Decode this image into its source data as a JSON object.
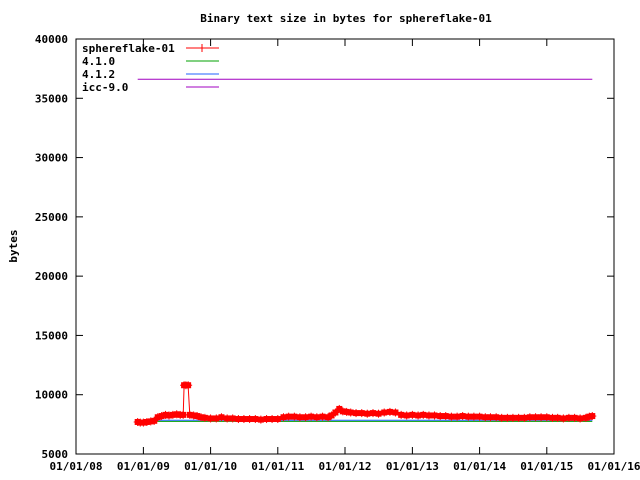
{
  "chart_data": {
    "type": "line",
    "title": "Binary text size in bytes for sphereflake-01",
    "xlabel": "",
    "ylabel": "bytes",
    "x_type": "date",
    "xlim": [
      "2008-01-01",
      "2016-01-01"
    ],
    "ylim": [
      5000,
      40000
    ],
    "yticks": [
      5000,
      10000,
      15000,
      20000,
      25000,
      30000,
      35000,
      40000
    ],
    "xticks": [
      "2008-01-01",
      "2009-01-01",
      "2010-01-01",
      "2011-01-01",
      "2012-01-01",
      "2013-01-01",
      "2014-01-01",
      "2015-01-01",
      "2016-01-01"
    ],
    "xtick_labels": [
      "01/01/08",
      "01/01/09",
      "01/01/10",
      "01/01/11",
      "01/01/12",
      "01/01/13",
      "01/01/14",
      "01/01/15",
      "01/01/16"
    ],
    "grid": false,
    "legend_position": "top-left",
    "series": [
      {
        "name": "sphereflake-01",
        "color": "#ff0000",
        "style": "linespoints",
        "points": [
          [
            "2008-12-01",
            7700
          ],
          [
            "2008-12-15",
            7650
          ],
          [
            "2009-01-01",
            7650
          ],
          [
            "2009-01-20",
            7700
          ],
          [
            "2009-02-10",
            7750
          ],
          [
            "2009-03-01",
            7800
          ],
          [
            "2009-03-20",
            8100
          ],
          [
            "2009-04-10",
            8200
          ],
          [
            "2009-05-01",
            8300
          ],
          [
            "2009-05-20",
            8250
          ],
          [
            "2009-06-10",
            8300
          ],
          [
            "2009-07-01",
            8350
          ],
          [
            "2009-07-20",
            8300
          ],
          [
            "2009-08-05",
            8300
          ],
          [
            "2009-08-10",
            10800
          ],
          [
            "2009-08-20",
            10800
          ],
          [
            "2009-09-01",
            10800
          ],
          [
            "2009-09-10",
            8300
          ],
          [
            "2009-10-01",
            8250
          ],
          [
            "2009-10-20",
            8200
          ],
          [
            "2009-11-10",
            8100
          ],
          [
            "2009-12-01",
            8050
          ],
          [
            "2010-01-01",
            8000
          ],
          [
            "2010-02-01",
            8000
          ],
          [
            "2010-03-01",
            8100
          ],
          [
            "2010-04-01",
            8000
          ],
          [
            "2010-05-01",
            8000
          ],
          [
            "2010-06-01",
            7950
          ],
          [
            "2010-07-01",
            7950
          ],
          [
            "2010-08-01",
            7950
          ],
          [
            "2010-09-01",
            7950
          ],
          [
            "2010-10-01",
            7900
          ],
          [
            "2010-11-01",
            7950
          ],
          [
            "2010-12-01",
            7950
          ],
          [
            "2011-01-01",
            7950
          ],
          [
            "2011-02-01",
            8100
          ],
          [
            "2011-03-01",
            8150
          ],
          [
            "2011-04-01",
            8150
          ],
          [
            "2011-05-01",
            8100
          ],
          [
            "2011-06-01",
            8100
          ],
          [
            "2011-07-01",
            8150
          ],
          [
            "2011-08-01",
            8100
          ],
          [
            "2011-09-01",
            8150
          ],
          [
            "2011-10-01",
            8100
          ],
          [
            "2011-10-20",
            8250
          ],
          [
            "2011-11-10",
            8500
          ],
          [
            "2011-12-01",
            8800
          ],
          [
            "2011-12-20",
            8600
          ],
          [
            "2012-01-10",
            8550
          ],
          [
            "2012-02-01",
            8500
          ],
          [
            "2012-03-01",
            8450
          ],
          [
            "2012-04-01",
            8450
          ],
          [
            "2012-05-01",
            8400
          ],
          [
            "2012-06-01",
            8450
          ],
          [
            "2012-07-01",
            8400
          ],
          [
            "2012-08-01",
            8500
          ],
          [
            "2012-09-01",
            8550
          ],
          [
            "2012-10-01",
            8500
          ],
          [
            "2012-11-01",
            8300
          ],
          [
            "2012-12-01",
            8250
          ],
          [
            "2013-01-01",
            8300
          ],
          [
            "2013-02-01",
            8250
          ],
          [
            "2013-03-01",
            8300
          ],
          [
            "2013-04-01",
            8250
          ],
          [
            "2013-05-01",
            8250
          ],
          [
            "2013-06-01",
            8200
          ],
          [
            "2013-07-01",
            8200
          ],
          [
            "2013-08-01",
            8150
          ],
          [
            "2013-09-01",
            8150
          ],
          [
            "2013-10-01",
            8200
          ],
          [
            "2013-11-01",
            8150
          ],
          [
            "2013-12-01",
            8150
          ],
          [
            "2014-01-01",
            8150
          ],
          [
            "2014-02-01",
            8100
          ],
          [
            "2014-03-01",
            8100
          ],
          [
            "2014-04-01",
            8100
          ],
          [
            "2014-05-01",
            8050
          ],
          [
            "2014-06-01",
            8050
          ],
          [
            "2014-07-01",
            8050
          ],
          [
            "2014-08-01",
            8050
          ],
          [
            "2014-09-01",
            8050
          ],
          [
            "2014-10-01",
            8100
          ],
          [
            "2014-11-01",
            8100
          ],
          [
            "2014-12-01",
            8100
          ],
          [
            "2015-01-01",
            8100
          ],
          [
            "2015-02-01",
            8050
          ],
          [
            "2015-03-01",
            8050
          ],
          [
            "2015-04-01",
            8000
          ],
          [
            "2015-05-01",
            8050
          ],
          [
            "2015-06-01",
            8050
          ],
          [
            "2015-07-01",
            8000
          ],
          [
            "2015-08-01",
            8050
          ],
          [
            "2015-08-20",
            8150
          ],
          [
            "2015-09-05",
            8200
          ]
        ]
      },
      {
        "name": "4.1.0",
        "color": "#00a000",
        "style": "lines",
        "points": [
          [
            "2008-12-01",
            7750
          ],
          [
            "2015-09-05",
            7750
          ]
        ]
      },
      {
        "name": "4.1.2",
        "color": "#2060ff",
        "style": "lines",
        "points": [
          [
            "2008-12-01",
            7850
          ],
          [
            "2015-09-05",
            7850
          ]
        ]
      },
      {
        "name": "icc-9.0",
        "color": "#a000c0",
        "style": "lines",
        "points": [
          [
            "2008-12-01",
            36600
          ],
          [
            "2015-09-05",
            36600
          ]
        ]
      }
    ]
  }
}
